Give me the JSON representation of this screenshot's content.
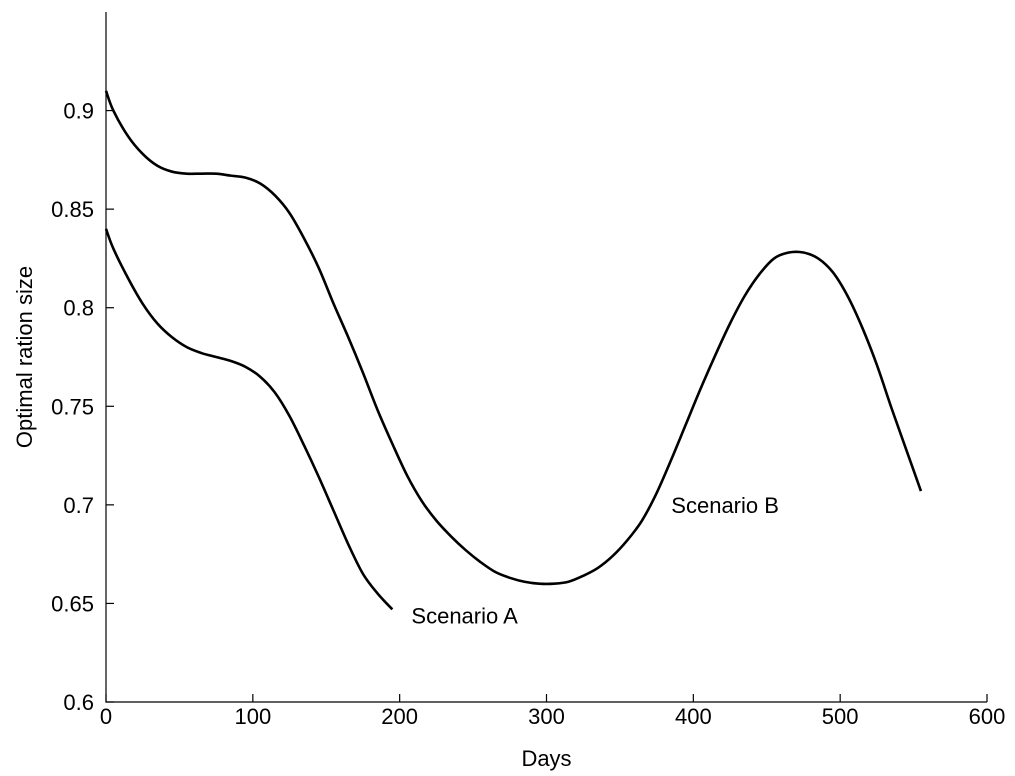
{
  "chart_data": {
    "type": "line",
    "title": "",
    "xlabel": "Days",
    "ylabel": "Optimal ration size",
    "xlim": [
      0,
      600
    ],
    "ylim": [
      0.6,
      0.95
    ],
    "xticks": [
      0,
      100,
      200,
      300,
      400,
      500,
      600
    ],
    "xtick_labels": [
      "0",
      "100",
      "200",
      "300",
      "400",
      "500",
      "600"
    ],
    "yticks": [
      0.6,
      0.65,
      0.7,
      0.75,
      0.8,
      0.85,
      0.9
    ],
    "ytick_labels": [
      "0.6",
      "0.65",
      "0.7",
      "0.75",
      "0.8",
      "0.85",
      "0.9"
    ],
    "grid": false,
    "line_color": "#000000",
    "series": [
      {
        "x": [
          0,
          5,
          15,
          25,
          35,
          45,
          55,
          65,
          75,
          85,
          95,
          105,
          115,
          125,
          135,
          145,
          155,
          165,
          175,
          185,
          195
        ],
        "y": [
          0.84,
          0.83,
          0.815,
          0.802,
          0.792,
          0.785,
          0.78,
          0.777,
          0.775,
          0.773,
          0.77,
          0.765,
          0.757,
          0.745,
          0.73,
          0.714,
          0.697,
          0.68,
          0.665,
          0.655,
          0.647
        ]
      },
      {
        "x": [
          0,
          5,
          15,
          25,
          35,
          45,
          55,
          65,
          75,
          85,
          95,
          105,
          115,
          125,
          135,
          145,
          155,
          165,
          175,
          185,
          195,
          205,
          215,
          225,
          235,
          245,
          255,
          265,
          275,
          285,
          295,
          305,
          315,
          325,
          335,
          345,
          355,
          365,
          375,
          385,
          395,
          405,
          415,
          425,
          435,
          445,
          455,
          465,
          475,
          485,
          495,
          505,
          515,
          525,
          535,
          545,
          555
        ],
        "y": [
          0.91,
          0.9,
          0.887,
          0.878,
          0.872,
          0.869,
          0.868,
          0.868,
          0.868,
          0.867,
          0.866,
          0.863,
          0.857,
          0.848,
          0.835,
          0.82,
          0.802,
          0.785,
          0.767,
          0.748,
          0.731,
          0.715,
          0.702,
          0.692,
          0.684,
          0.677,
          0.671,
          0.666,
          0.663,
          0.661,
          0.66,
          0.66,
          0.661,
          0.664,
          0.668,
          0.674,
          0.682,
          0.692,
          0.706,
          0.723,
          0.741,
          0.759,
          0.776,
          0.792,
          0.806,
          0.817,
          0.825,
          0.828,
          0.828,
          0.825,
          0.818,
          0.806,
          0.79,
          0.771,
          0.749,
          0.728,
          0.707
        ]
      }
    ],
    "annotations": [
      {
        "text": "Scenario A",
        "x": 208,
        "y": 0.644
      },
      {
        "text": "Scenario B",
        "x": 385,
        "y": 0.7
      }
    ]
  }
}
